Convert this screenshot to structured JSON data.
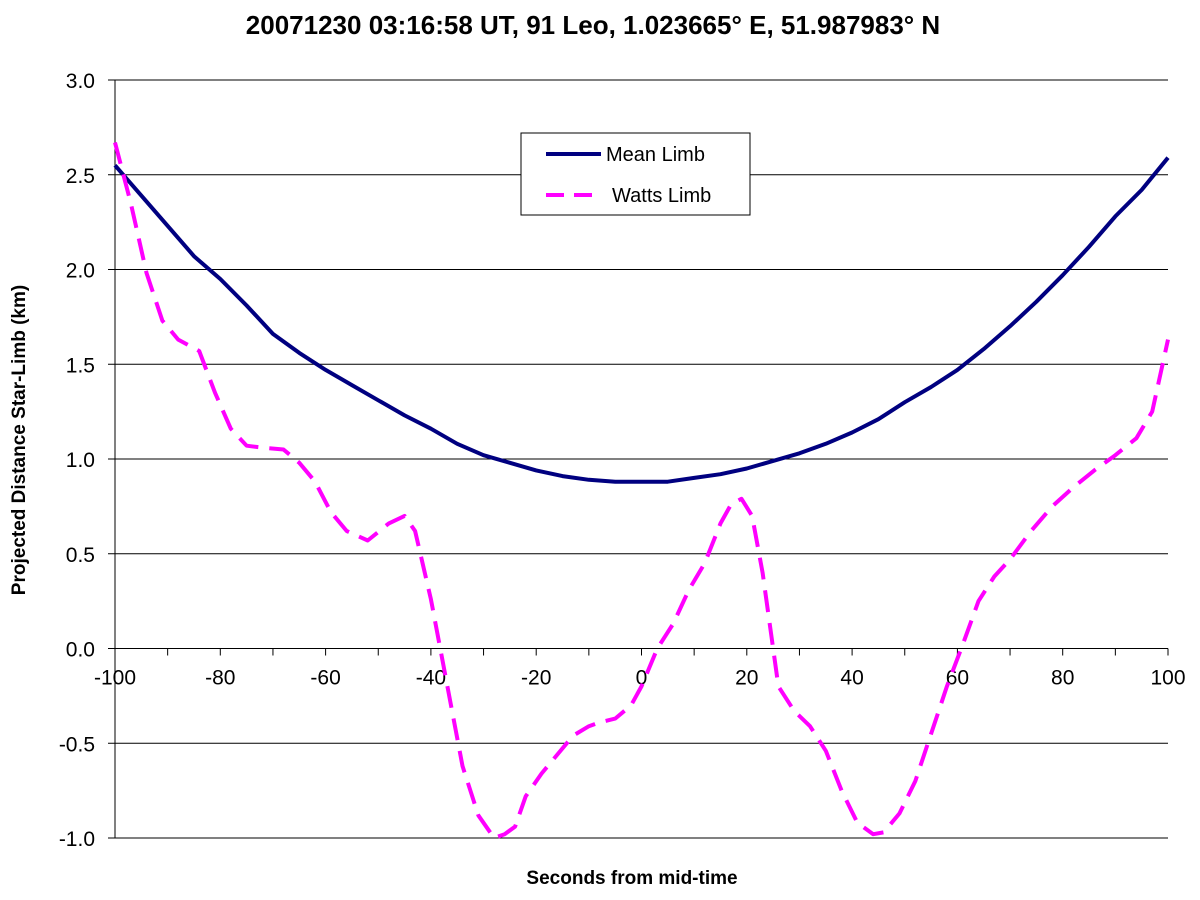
{
  "chart_data": {
    "type": "line",
    "title": "20071230 03:16:58 UT, 91 Leo, 1.023665° E, 51.987983° N",
    "xlabel": "Seconds from mid-time",
    "ylabel": "Projected Distance Star-Limb (km)",
    "xlim": [
      -100,
      100
    ],
    "ylim": [
      -1.0,
      3.0
    ],
    "x_ticks": [
      -100,
      -80,
      -60,
      -40,
      -20,
      0,
      20,
      40,
      60,
      80,
      100
    ],
    "x_tick_labels": [
      "-100",
      "-80",
      "-60",
      "-40",
      "-20",
      "0",
      "20",
      "40",
      "60",
      "80",
      "100"
    ],
    "y_ticks": [
      -1.0,
      -0.5,
      0.0,
      0.5,
      1.0,
      1.5,
      2.0,
      2.5,
      3.0
    ],
    "y_tick_labels": [
      "-1.0",
      "-0.5",
      "0.0",
      "0.5",
      "1.0",
      "1.5",
      "2.0",
      "2.5",
      "3.0"
    ],
    "grid": "horizontal",
    "legend_position": "top-center",
    "series": [
      {
        "name": "Mean Limb",
        "color": "#000080",
        "style": "solid",
        "x": [
          -100,
          -95,
          -90,
          -85,
          -80,
          -75,
          -70,
          -65,
          -60,
          -55,
          -50,
          -45,
          -40,
          -35,
          -30,
          -25,
          -20,
          -15,
          -10,
          -5,
          0,
          5,
          10,
          15,
          20,
          25,
          30,
          35,
          40,
          45,
          50,
          55,
          60,
          65,
          70,
          75,
          80,
          85,
          90,
          95,
          100
        ],
        "y": [
          2.55,
          2.39,
          2.23,
          2.07,
          1.95,
          1.81,
          1.66,
          1.56,
          1.47,
          1.39,
          1.31,
          1.23,
          1.16,
          1.08,
          1.02,
          0.98,
          0.94,
          0.91,
          0.89,
          0.88,
          0.88,
          0.88,
          0.9,
          0.92,
          0.95,
          0.99,
          1.03,
          1.08,
          1.14,
          1.21,
          1.3,
          1.38,
          1.47,
          1.58,
          1.7,
          1.83,
          1.97,
          2.12,
          2.28,
          2.42,
          2.59
        ]
      },
      {
        "name": "Watts Limb",
        "color": "#ff00ff",
        "style": "dashed",
        "x": [
          -100,
          -97,
          -94,
          -91,
          -88,
          -84,
          -81,
          -78,
          -75,
          -72,
          -68,
          -65,
          -62,
          -59,
          -56,
          -52,
          -48,
          -45,
          -43,
          -40,
          -37,
          -34,
          -31,
          -28,
          -26,
          -24,
          -22,
          -19,
          -16,
          -13,
          -10,
          -8,
          -5,
          -2,
          0,
          3,
          6,
          9,
          12,
          15,
          17,
          19,
          21,
          23,
          26,
          29,
          32,
          35,
          38,
          41,
          44,
          46,
          49,
          52,
          55,
          58,
          61,
          64,
          67,
          70,
          74,
          78,
          82,
          86,
          90,
          94,
          97,
          100
        ],
        "y": [
          2.67,
          2.35,
          1.98,
          1.73,
          1.63,
          1.57,
          1.35,
          1.16,
          1.07,
          1.06,
          1.05,
          0.98,
          0.88,
          0.72,
          0.62,
          0.57,
          0.66,
          0.7,
          0.62,
          0.26,
          -0.18,
          -0.62,
          -0.88,
          -1.0,
          -0.98,
          -0.94,
          -0.78,
          -0.66,
          -0.56,
          -0.46,
          -0.41,
          -0.39,
          -0.37,
          -0.3,
          -0.2,
          0.0,
          0.13,
          0.31,
          0.45,
          0.66,
          0.76,
          0.79,
          0.7,
          0.4,
          -0.2,
          -0.33,
          -0.41,
          -0.54,
          -0.75,
          -0.92,
          -0.98,
          -0.97,
          -0.87,
          -0.7,
          -0.45,
          -0.2,
          0.02,
          0.25,
          0.38,
          0.47,
          0.62,
          0.75,
          0.85,
          0.94,
          1.02,
          1.11,
          1.25,
          1.63
        ]
      }
    ]
  }
}
